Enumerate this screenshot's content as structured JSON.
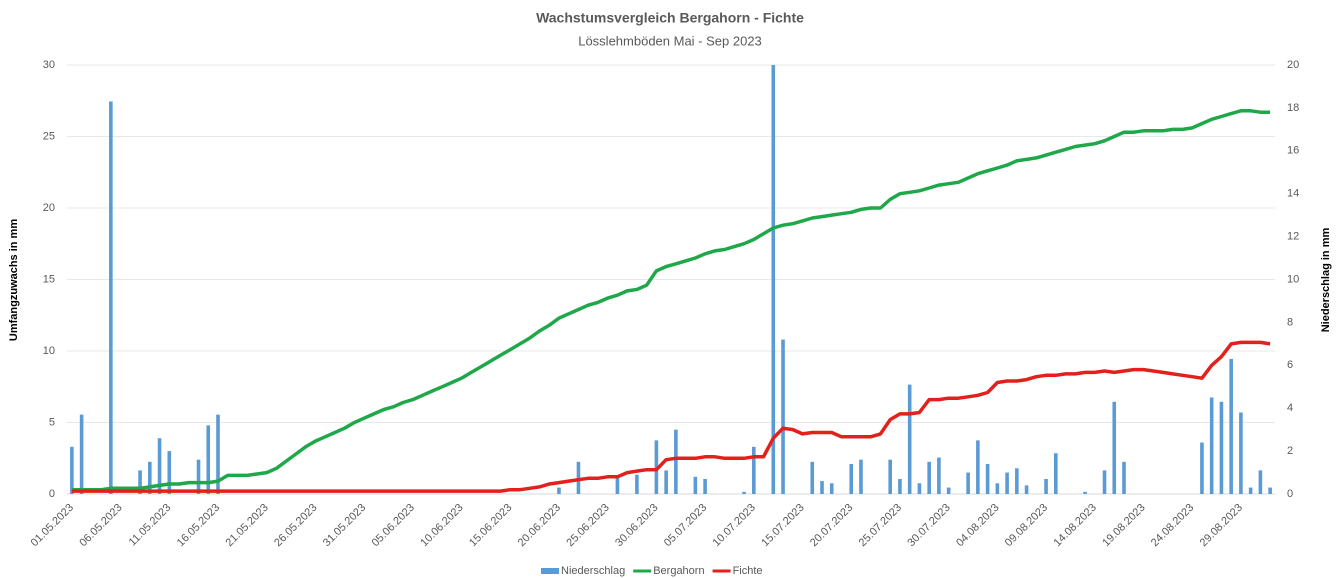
{
  "chart_data": {
    "type": "combo",
    "title": "Wachstumsvergleich Bergahorn - Fichte",
    "subtitle": "Lösslehmböden Mai - Sep 2023",
    "ylabel": "Umfangzuwachs in mm",
    "y2label": "Niederschlag  in mm",
    "ylim": [
      0,
      30
    ],
    "yticks": [
      0,
      5,
      10,
      15,
      20,
      25,
      30
    ],
    "y2lim": [
      0,
      20
    ],
    "y2ticks": [
      0,
      2,
      4,
      6,
      8,
      10,
      12,
      14,
      16,
      18,
      20
    ],
    "grid": true,
    "legend": "bottom",
    "categories": [
      "01.05.2023",
      null,
      null,
      null,
      null,
      "06.05.2023",
      null,
      null,
      null,
      null,
      "11.05.2023",
      null,
      null,
      null,
      null,
      "16.05.2023",
      null,
      null,
      null,
      null,
      "21.05.2023",
      null,
      null,
      null,
      null,
      "26.05.2023",
      null,
      null,
      null,
      null,
      "31.05.2023",
      null,
      null,
      null,
      null,
      "05.06.2023",
      null,
      null,
      null,
      null,
      "10.06.2023",
      null,
      null,
      null,
      null,
      "15.06.2023",
      null,
      null,
      null,
      null,
      "20.06.2023",
      null,
      null,
      null,
      null,
      "25.06.2023",
      null,
      null,
      null,
      null,
      "30.06.2023",
      null,
      null,
      null,
      null,
      "05.07.2023",
      null,
      null,
      null,
      null,
      "10.07.2023",
      null,
      null,
      null,
      null,
      "15.07.2023",
      null,
      null,
      null,
      null,
      "20.07.2023",
      null,
      null,
      null,
      null,
      "25.07.2023",
      null,
      null,
      null,
      null,
      "30.07.2023",
      null,
      null,
      null,
      null,
      "04.08.2023",
      null,
      null,
      null,
      null,
      "09.08.2023",
      null,
      null,
      null,
      null,
      "14.08.2023",
      null,
      null,
      null,
      null,
      "19.08.2023",
      null,
      null,
      null,
      null,
      "24.08.2023",
      null,
      null,
      null,
      null,
      "29.08.2023",
      null,
      null,
      null
    ],
    "series": [
      {
        "name": "Niederschlag",
        "type": "bar",
        "axis": "y2",
        "color": "#5b9bd5",
        "values": [
          2.2,
          3.7,
          0,
          0,
          18.3,
          0,
          0,
          1.1,
          1.5,
          2.6,
          2.0,
          0,
          0,
          1.6,
          3.2,
          3.7,
          0,
          0,
          0,
          0,
          0,
          0,
          0,
          0,
          0,
          0,
          0,
          0,
          0,
          0,
          0,
          0,
          0,
          0,
          0,
          0,
          0,
          0,
          0,
          0,
          0,
          0,
          0,
          0,
          0,
          0,
          0,
          0,
          0,
          0,
          0.3,
          0,
          1.5,
          0,
          0,
          0,
          0.8,
          0,
          0.9,
          0,
          2.5,
          1.1,
          3.0,
          0,
          0.8,
          0.7,
          0,
          0,
          0,
          0.1,
          2.2,
          0,
          20,
          7.2,
          0,
          0,
          1.5,
          0.6,
          0.5,
          0,
          1.4,
          1.6,
          0,
          0,
          1.6,
          0.7,
          5.1,
          0.5,
          1.5,
          1.7,
          0.3,
          0,
          1.0,
          2.5,
          1.4,
          0.5,
          1.0,
          1.2,
          0.4,
          0,
          0.7,
          1.9,
          0,
          0,
          0.1,
          0,
          1.1,
          4.3,
          1.5,
          0,
          0,
          0,
          0,
          0,
          0,
          0,
          2.4,
          4.5,
          4.3,
          6.3,
          3.8,
          0.3,
          1.1,
          0.3
        ]
      },
      {
        "name": "Bergahorn",
        "type": "line",
        "color": "#1fa84a",
        "values": [
          0.3,
          0.3,
          0.3,
          0.3,
          0.4,
          0.4,
          0.4,
          0.4,
          0.5,
          0.6,
          0.7,
          0.7,
          0.8,
          0.8,
          0.8,
          0.9,
          1.3,
          1.3,
          1.3,
          1.4,
          1.5,
          1.8,
          2.3,
          2.8,
          3.3,
          3.7,
          4.0,
          4.3,
          4.6,
          5.0,
          5.3,
          5.6,
          5.9,
          6.1,
          6.4,
          6.6,
          6.9,
          7.2,
          7.5,
          7.8,
          8.1,
          8.5,
          8.9,
          9.3,
          9.7,
          10.1,
          10.5,
          10.9,
          11.4,
          11.8,
          12.3,
          12.6,
          12.9,
          13.2,
          13.4,
          13.7,
          13.9,
          14.2,
          14.3,
          14.6,
          15.6,
          15.9,
          16.1,
          16.3,
          16.5,
          16.8,
          17.0,
          17.1,
          17.3,
          17.5,
          17.8,
          18.2,
          18.6,
          18.8,
          18.9,
          19.1,
          19.3,
          19.4,
          19.5,
          19.6,
          19.7,
          19.9,
          20.0,
          20.0,
          20.6,
          21.0,
          21.1,
          21.2,
          21.4,
          21.6,
          21.7,
          21.8,
          22.1,
          22.4,
          22.6,
          22.8,
          23.0,
          23.3,
          23.4,
          23.5,
          23.7,
          23.9,
          24.1,
          24.3,
          24.4,
          24.5,
          24.7,
          25.0,
          25.3,
          25.3,
          25.4,
          25.4,
          25.4,
          25.5,
          25.5,
          25.6,
          25.9,
          26.2,
          26.4,
          26.6,
          26.8,
          26.8,
          26.7,
          26.7
        ]
      },
      {
        "name": "Fichte",
        "type": "line",
        "color": "#e3201c",
        "values": [
          0.2,
          0.2,
          0.2,
          0.2,
          0.2,
          0.2,
          0.2,
          0.2,
          0.2,
          0.2,
          0.2,
          0.2,
          0.2,
          0.2,
          0.2,
          0.2,
          0.2,
          0.2,
          0.2,
          0.2,
          0.2,
          0.2,
          0.2,
          0.2,
          0.2,
          0.2,
          0.2,
          0.2,
          0.2,
          0.2,
          0.2,
          0.2,
          0.2,
          0.2,
          0.2,
          0.2,
          0.2,
          0.2,
          0.2,
          0.2,
          0.2,
          0.2,
          0.2,
          0.2,
          0.2,
          0.3,
          0.3,
          0.4,
          0.5,
          0.7,
          0.8,
          0.9,
          1.0,
          1.1,
          1.1,
          1.2,
          1.2,
          1.5,
          1.6,
          1.7,
          1.7,
          2.4,
          2.5,
          2.5,
          2.5,
          2.6,
          2.6,
          2.5,
          2.5,
          2.5,
          2.6,
          2.6,
          3.9,
          4.6,
          4.5,
          4.2,
          4.3,
          4.3,
          4.3,
          4.0,
          4.0,
          4.0,
          4.0,
          4.2,
          5.2,
          5.6,
          5.6,
          5.7,
          6.6,
          6.6,
          6.7,
          6.7,
          6.8,
          6.9,
          7.1,
          7.8,
          7.9,
          7.9,
          8.0,
          8.2,
          8.3,
          8.3,
          8.4,
          8.4,
          8.5,
          8.5,
          8.6,
          8.5,
          8.6,
          8.7,
          8.7,
          8.6,
          8.5,
          8.4,
          8.3,
          8.2,
          8.1,
          9.0,
          9.6,
          10.5,
          10.6,
          10.6,
          10.6,
          10.5
        ]
      }
    ]
  }
}
